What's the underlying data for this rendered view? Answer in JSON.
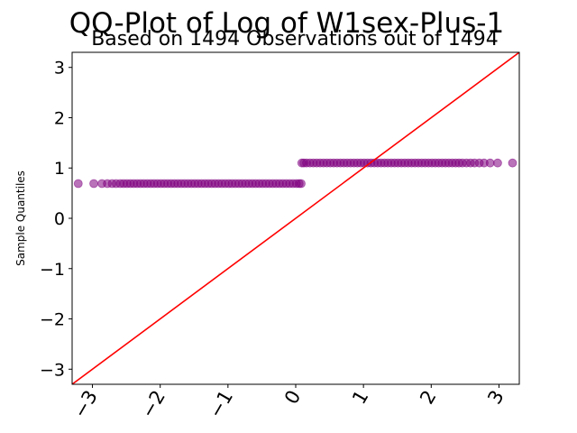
{
  "chart_data": {
    "type": "scatter",
    "title": "QQ-Plot of Log of W1sex-Plus-1",
    "subtitle": "Based on 1494 Observations out of 1494",
    "xlabel": "",
    "ylabel": "Sample Quantiles",
    "xlim": [
      -3.3,
      3.3
    ],
    "ylim": [
      -3.3,
      3.3
    ],
    "xticks": [
      -3,
      -2,
      -1,
      0,
      1,
      2,
      3
    ],
    "xtick_labels": [
      "−3",
      "−2",
      "−1",
      "0",
      "1",
      "2",
      "3"
    ],
    "yticks": [
      -3,
      -2,
      -1,
      0,
      1,
      2,
      3
    ],
    "ytick_labels": [
      "−3",
      "−2",
      "−1",
      "0",
      "1",
      "2",
      "3"
    ],
    "grid": false,
    "reference_line": {
      "slope": 1,
      "intercept": 0,
      "color": "#ff0000"
    },
    "point_color": "#800080",
    "series": [
      {
        "group": "lower cluster",
        "y": 0.69,
        "x": [
          -3.21,
          -2.98,
          -2.86,
          -2.78,
          -2.71,
          -2.65,
          -2.59,
          -2.54,
          -2.49,
          -2.44,
          -2.39,
          -2.34,
          -2.29,
          -2.24,
          -2.19,
          -2.14,
          -2.09,
          -2.04,
          -1.99,
          -1.94,
          -1.89,
          -1.84,
          -1.79,
          -1.74,
          -1.69,
          -1.64,
          -1.59,
          -1.54,
          -1.49,
          -1.44,
          -1.39,
          -1.34,
          -1.29,
          -1.24,
          -1.19,
          -1.14,
          -1.09,
          -1.04,
          -0.99,
          -0.94,
          -0.89,
          -0.84,
          -0.79,
          -0.74,
          -0.69,
          -0.64,
          -0.59,
          -0.54,
          -0.49,
          -0.44,
          -0.39,
          -0.34,
          -0.29,
          -0.24,
          -0.19,
          -0.14,
          -0.09,
          -0.04,
          0.01,
          0.05,
          0.08
        ]
      },
      {
        "group": "upper cluster",
        "y": 1.1,
        "x": [
          0.09,
          0.12,
          0.16,
          0.21,
          0.26,
          0.31,
          0.36,
          0.41,
          0.46,
          0.51,
          0.56,
          0.61,
          0.66,
          0.71,
          0.76,
          0.81,
          0.86,
          0.91,
          0.96,
          1.01,
          1.06,
          1.11,
          1.16,
          1.21,
          1.26,
          1.31,
          1.36,
          1.41,
          1.46,
          1.51,
          1.56,
          1.61,
          1.66,
          1.71,
          1.76,
          1.81,
          1.86,
          1.91,
          1.96,
          2.01,
          2.06,
          2.11,
          2.16,
          2.21,
          2.26,
          2.31,
          2.36,
          2.41,
          2.46,
          2.52,
          2.58,
          2.64,
          2.71,
          2.78,
          2.87,
          2.98,
          3.2
        ]
      }
    ]
  }
}
